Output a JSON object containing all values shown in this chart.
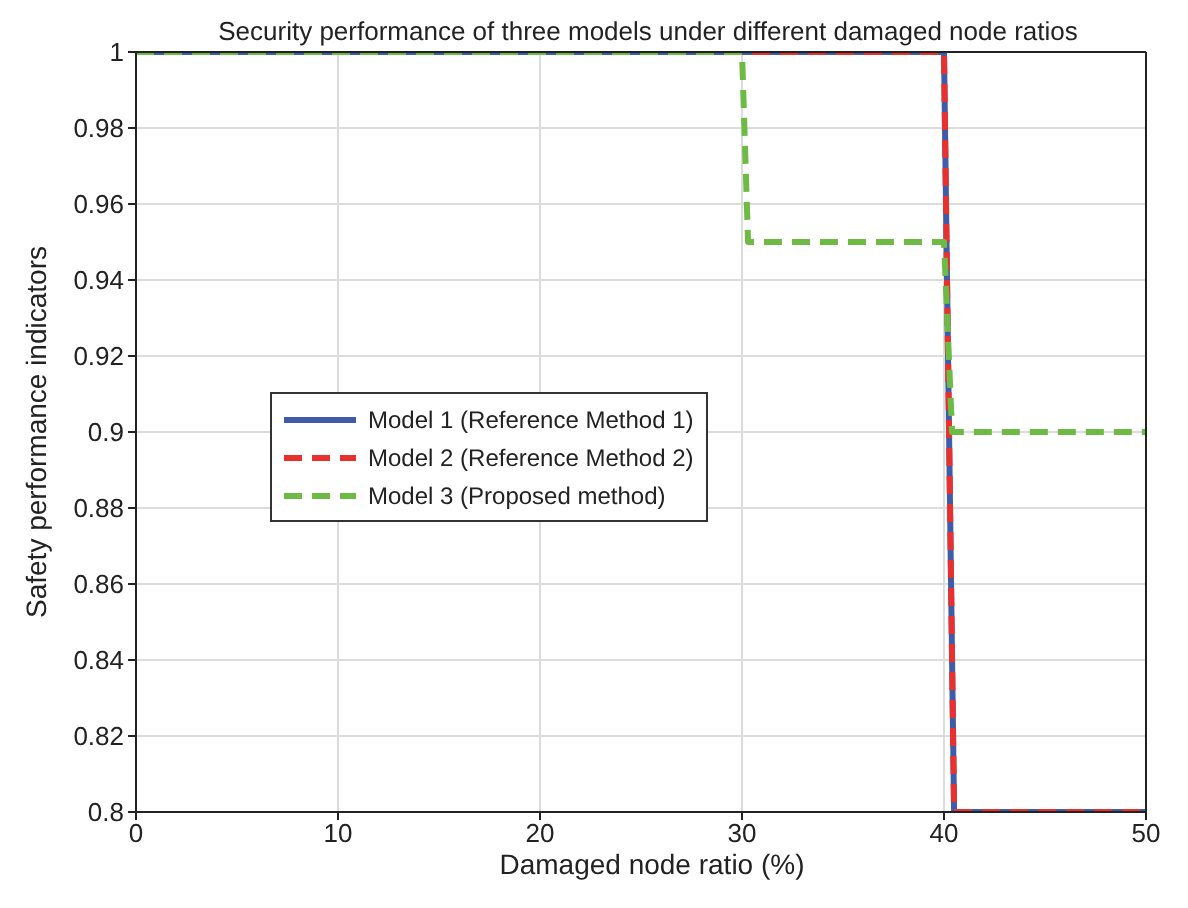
{
  "chart_data": {
    "type": "line",
    "title": "Security performance of three models under different damaged node ratios",
    "xlabel": "Damaged node ratio (%)",
    "ylabel": "Safety performance indicators",
    "xlim": [
      0,
      50
    ],
    "xticks": [
      0,
      10,
      20,
      30,
      40,
      50
    ],
    "ylim": [
      0.8,
      1
    ],
    "yticks": [
      0.8,
      0.82,
      0.84,
      0.86,
      0.88,
      0.9,
      0.92,
      0.94,
      0.96,
      0.98,
      1
    ],
    "grid": true,
    "legend": "left",
    "marker": "none",
    "series": [
      {
        "name": "Model 1 (Reference Method 1)",
        "color": "#3f5ba9",
        "line_style": "solid",
        "x": [
          0,
          40,
          40.5,
          50
        ],
        "values": [
          1,
          1,
          0.8,
          0.8
        ]
      },
      {
        "name": "Model 2 (Reference Method 2)",
        "color": "#e8312f",
        "line_style": "dashed",
        "x": [
          0,
          40,
          40.5,
          50
        ],
        "values": [
          1,
          1,
          0.8,
          0.8
        ]
      },
      {
        "name": "Model 3 (Proposed method)",
        "color": "#6dbb45",
        "line_style": "dashed",
        "x": [
          0,
          30,
          30.3,
          40,
          40.4,
          50
        ],
        "values": [
          1,
          1,
          0.95,
          0.95,
          0.9,
          0.9
        ]
      }
    ]
  }
}
